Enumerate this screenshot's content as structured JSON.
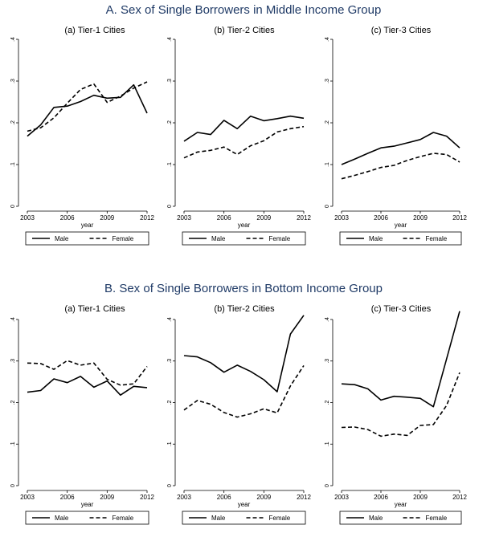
{
  "sections": [
    {
      "title": "A. Sex of Single Borrowers in Middle Income Group",
      "panels": [
        {
          "title": "(a) Tier-1 Cities"
        },
        {
          "title": "(b) Tier-2 Cities"
        },
        {
          "title": "(c) Tier-3 Cities"
        }
      ]
    },
    {
      "title": "B. Sex of Single Borrowers in Bottom Income Group",
      "panels": [
        {
          "title": "(a) Tier-1 Cities"
        },
        {
          "title": "(b) Tier-2 Cities"
        },
        {
          "title": "(c) Tier-3 Cities"
        }
      ]
    }
  ],
  "chart_data": [
    {
      "type": "line",
      "title": "(a) Tier-1 Cities",
      "xlabel": "year",
      "ylabel": "",
      "x": [
        2003,
        2004,
        2005,
        2006,
        2007,
        2008,
        2009,
        2010,
        2011,
        2012
      ],
      "xticks": [
        "2003",
        "2006",
        "2009",
        "2012"
      ],
      "yticks": [
        "0",
        ".1",
        ".2",
        ".3",
        ".4"
      ],
      "ylim": [
        0,
        0.4
      ],
      "series": [
        {
          "name": "Male",
          "style": "solid",
          "values": [
            0.168,
            0.195,
            0.237,
            0.24,
            0.251,
            0.266,
            0.259,
            0.261,
            0.291,
            0.223
          ]
        },
        {
          "name": "Female",
          "style": "dashed",
          "values": [
            0.18,
            0.188,
            0.212,
            0.247,
            0.28,
            0.293,
            0.249,
            0.264,
            0.283,
            0.298
          ]
        }
      ],
      "legend": "bottom"
    },
    {
      "type": "line",
      "title": "(b) Tier-2 Cities",
      "xlabel": "year",
      "ylabel": "",
      "x": [
        2003,
        2004,
        2005,
        2006,
        2007,
        2008,
        2009,
        2010,
        2011,
        2012
      ],
      "xticks": [
        "2003",
        "2006",
        "2009",
        "2012"
      ],
      "yticks": [
        "0",
        ".1",
        ".2",
        ".3",
        ".4"
      ],
      "ylim": [
        0,
        0.4
      ],
      "series": [
        {
          "name": "Male",
          "style": "solid",
          "values": [
            0.156,
            0.177,
            0.172,
            0.206,
            0.186,
            0.216,
            0.205,
            0.21,
            0.216,
            0.211
          ]
        },
        {
          "name": "Female",
          "style": "dashed",
          "values": [
            0.116,
            0.13,
            0.134,
            0.142,
            0.124,
            0.145,
            0.157,
            0.178,
            0.186,
            0.191
          ]
        }
      ],
      "legend": "bottom"
    },
    {
      "type": "line",
      "title": "(c) Tier-3 Cities",
      "xlabel": "year",
      "ylabel": "",
      "x": [
        2003,
        2004,
        2005,
        2006,
        2007,
        2008,
        2009,
        2010,
        2011,
        2012
      ],
      "xticks": [
        "2003",
        "2006",
        "2009",
        "2012"
      ],
      "yticks": [
        "0",
        ".1",
        ".2",
        ".3",
        ".4"
      ],
      "ylim": [
        0,
        0.4
      ],
      "series": [
        {
          "name": "Male",
          "style": "solid",
          "values": [
            0.1,
            0.113,
            0.127,
            0.14,
            0.144,
            0.152,
            0.16,
            0.177,
            0.168,
            0.14
          ]
        },
        {
          "name": "Female",
          "style": "dashed",
          "values": [
            0.066,
            0.074,
            0.083,
            0.093,
            0.098,
            0.11,
            0.119,
            0.127,
            0.124,
            0.106
          ]
        }
      ],
      "legend": "bottom"
    },
    {
      "type": "line",
      "title": "(a) Tier-1 Cities",
      "xlabel": "year",
      "ylabel": "",
      "x": [
        2003,
        2004,
        2005,
        2006,
        2007,
        2008,
        2009,
        2010,
        2011,
        2012
      ],
      "xticks": [
        "2003",
        "2006",
        "2009",
        "2012"
      ],
      "yticks": [
        "0",
        ".1",
        ".2",
        ".3",
        ".4"
      ],
      "ylim": [
        0,
        0.4
      ],
      "series": [
        {
          "name": "Male",
          "style": "solid",
          "values": [
            0.225,
            0.229,
            0.257,
            0.248,
            0.263,
            0.237,
            0.252,
            0.218,
            0.239,
            0.236
          ]
        },
        {
          "name": "Female",
          "style": "dashed",
          "values": [
            0.295,
            0.294,
            0.28,
            0.301,
            0.29,
            0.295,
            0.256,
            0.242,
            0.245,
            0.287
          ]
        }
      ],
      "legend": "bottom"
    },
    {
      "type": "line",
      "title": "(b) Tier-2 Cities",
      "xlabel": "year",
      "ylabel": "",
      "x": [
        2003,
        2004,
        2005,
        2006,
        2007,
        2008,
        2009,
        2010,
        2011,
        2012
      ],
      "xticks": [
        "2003",
        "2006",
        "2009",
        "2012"
      ],
      "yticks": [
        "0",
        ".1",
        ".2",
        ".3",
        ".4"
      ],
      "ylim": [
        0,
        0.4
      ],
      "series": [
        {
          "name": "Male",
          "style": "solid",
          "values": [
            0.313,
            0.31,
            0.296,
            0.273,
            0.29,
            0.275,
            0.255,
            0.226,
            0.365,
            0.41
          ]
        },
        {
          "name": "Female",
          "style": "dashed",
          "values": [
            0.182,
            0.205,
            0.196,
            0.176,
            0.165,
            0.173,
            0.185,
            0.175,
            0.24,
            0.289
          ]
        }
      ],
      "legend": "bottom"
    },
    {
      "type": "line",
      "title": "(c) Tier-3 Cities",
      "xlabel": "year",
      "ylabel": "",
      "x": [
        2003,
        2004,
        2005,
        2006,
        2007,
        2008,
        2009,
        2010,
        2011,
        2012
      ],
      "xticks": [
        "2003",
        "2006",
        "2009",
        "2012"
      ],
      "yticks": [
        "0",
        ".1",
        ".2",
        ".3",
        ".4"
      ],
      "ylim": [
        0,
        0.4
      ],
      "series": [
        {
          "name": "Male",
          "style": "solid",
          "values": [
            0.245,
            0.243,
            0.233,
            0.206,
            0.215,
            0.213,
            0.21,
            0.19,
            0.305,
            0.42
          ]
        },
        {
          "name": "Female",
          "style": "dashed",
          "values": [
            0.14,
            0.141,
            0.135,
            0.119,
            0.124,
            0.121,
            0.145,
            0.147,
            0.193,
            0.272
          ]
        }
      ],
      "legend": "bottom"
    }
  ]
}
